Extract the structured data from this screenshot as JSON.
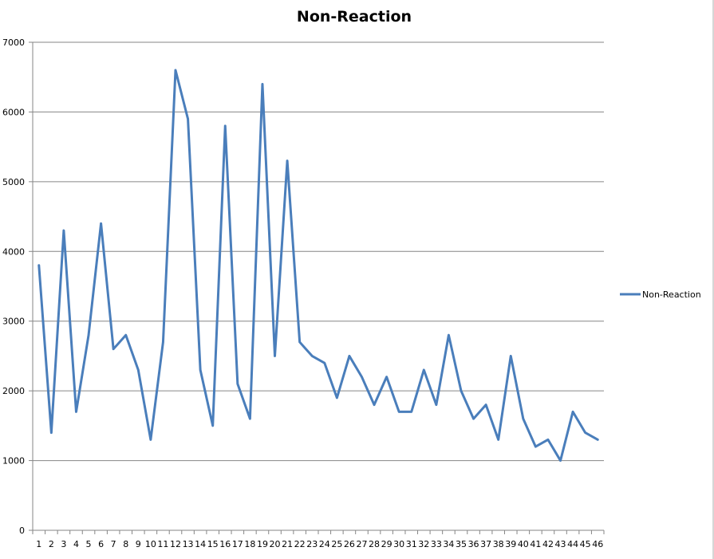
{
  "chart_data": {
    "type": "line",
    "title": "Non-Reaction",
    "xlabel": "",
    "ylabel": "",
    "ylim": [
      0,
      7000
    ],
    "yticks": [
      0,
      1000,
      2000,
      3000,
      4000,
      5000,
      6000,
      7000
    ],
    "ytick_labels": [
      "0",
      "1000",
      "2000",
      "3000",
      "4000",
      "5000",
      "6000",
      "7000"
    ],
    "grid": true,
    "legend_position": "right",
    "categories": [
      "1",
      "2",
      "3",
      "4",
      "5",
      "6",
      "7",
      "8",
      "9",
      "10",
      "11",
      "12",
      "13",
      "14",
      "15",
      "16",
      "17",
      "18",
      "19",
      "20",
      "21",
      "22",
      "23",
      "24",
      "25",
      "26",
      "27",
      "28",
      "29",
      "30",
      "31",
      "32",
      "33",
      "34",
      "35",
      "36",
      "37",
      "38",
      "39",
      "40",
      "41",
      "42",
      "43",
      "44",
      "45",
      "46"
    ],
    "series": [
      {
        "name": "Non-Reaction",
        "color": "#4a7ebb",
        "values": [
          3800,
          1400,
          4300,
          1700,
          2800,
          4400,
          2600,
          2800,
          2300,
          1300,
          2700,
          6600,
          5900,
          2300,
          1500,
          5800,
          2100,
          1600,
          6400,
          2500,
          5300,
          2700,
          2500,
          2400,
          1900,
          2500,
          2200,
          1800,
          2200,
          1700,
          1700,
          2300,
          1800,
          2800,
          2000,
          1600,
          1800,
          1300,
          2500,
          1600,
          1200,
          1300,
          1000,
          1700,
          1400,
          1300
        ]
      }
    ]
  }
}
